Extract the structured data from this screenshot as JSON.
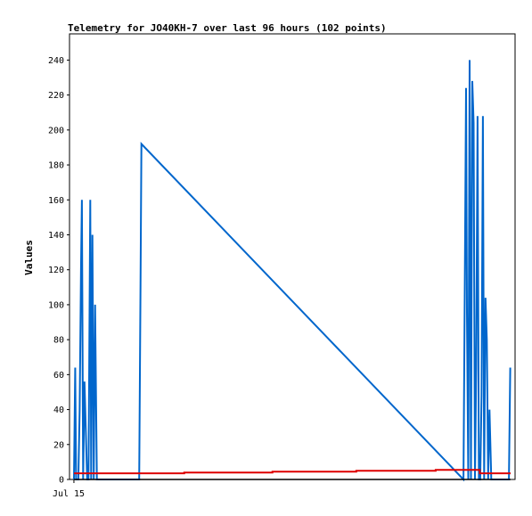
{
  "chart_data": {
    "type": "line",
    "title": "Telemetry for JO40KH-7 over last 96 hours (102 points)",
    "ylabel": "Values",
    "xlabel": "",
    "x_tick_labels": [
      {
        "label": "Jul 15",
        "x": 0
      }
    ],
    "xlim": [
      -1,
      100
    ],
    "ylim": [
      0,
      255
    ],
    "y_ticks": [
      0,
      20,
      40,
      60,
      80,
      100,
      120,
      140,
      160,
      180,
      200,
      220,
      240
    ],
    "grid": false,
    "legend": "none",
    "series": [
      {
        "color": "#0066cc",
        "x": [
          0,
          0.3,
          0.5,
          1,
          1.3,
          1.6,
          1.8,
          2.1,
          2.4,
          3,
          3.3,
          3.7,
          3.9,
          4.2,
          4.5,
          4.8,
          5.2,
          14.8,
          15.1,
          15.3,
          88.3,
          88.6,
          88.9,
          89.1,
          89.4,
          89.7,
          90,
          90.3,
          90.6,
          90.9,
          91.2,
          91.5,
          91.8,
          92.1,
          92.4,
          92.7,
          93,
          93.3,
          93.6,
          93.9,
          94.2,
          94.6,
          94.9,
          95.2,
          95.5,
          98.6,
          98.9
        ],
        "y": [
          0,
          64,
          0,
          0,
          40,
          120,
          160,
          0,
          56,
          0,
          0,
          160,
          0,
          140,
          0,
          100,
          0,
          0,
          112,
          192,
          0,
          112,
          224,
          96,
          0,
          240,
          0,
          228,
          204,
          0,
          64,
          208,
          0,
          0,
          48,
          208,
          0,
          104,
          80,
          0,
          40,
          0,
          0,
          0,
          0,
          0,
          64
        ]
      },
      {
        "color": "#dd0000",
        "x": [
          0,
          25,
          25,
          45,
          45,
          64,
          64,
          82,
          82,
          92,
          92,
          99
        ],
        "y": [
          3.5,
          3.5,
          4,
          4,
          4.5,
          4.5,
          5,
          5,
          5.5,
          5.5,
          3.5,
          3.5
        ]
      },
      {
        "color": "#000000",
        "x": [
          0,
          99
        ],
        "y": [
          0,
          0
        ]
      }
    ]
  }
}
